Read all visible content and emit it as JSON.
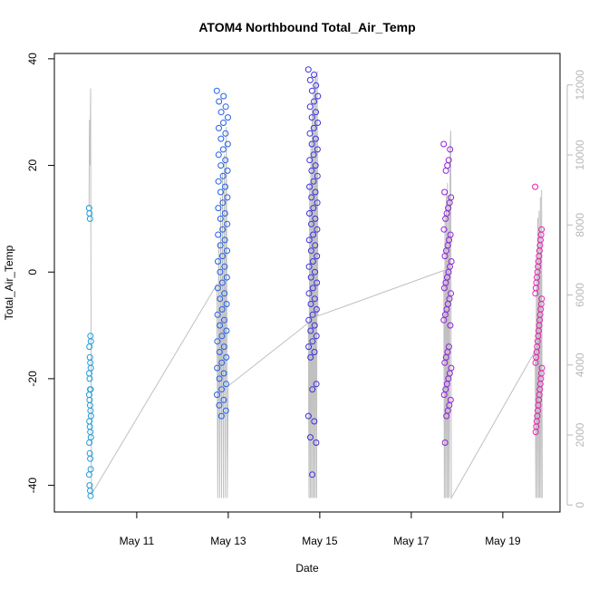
{
  "chart_data": {
    "type": "scatter",
    "title": "ATOM4 Northbound Total_Air_Temp",
    "xlabel": "Date",
    "ylabel": "Total_Air_Temp",
    "x_ticks": [
      "May 11",
      "May 13",
      "May 15",
      "May 17",
      "May 19"
    ],
    "y_ticks": [
      -40,
      -20,
      0,
      20,
      40
    ],
    "y2_ticks": [
      0,
      2000,
      4000,
      6000,
      8000,
      10000,
      12000
    ],
    "xlim": [
      "2016-05-09 04:48",
      "2016-05-20 06:00"
    ],
    "ylim": [
      -45,
      41
    ],
    "y2lim": [
      -200,
      12900
    ],
    "secondary_series": {
      "name": "",
      "color": "#c0c0c0",
      "description_axis": "right",
      "points": [
        [
          "2016-05-09 23:00",
          8500
        ],
        [
          "2016-05-09 23:12",
          11000
        ],
        [
          "2016-05-09 23:30",
          9700
        ],
        [
          "2016-05-09 23:48",
          11900
        ],
        [
          "2016-05-10 00:12",
          300
        ],
        [
          "2016-05-12 18:00",
          6300
        ],
        [
          "2016-05-12 18:30",
          200
        ],
        [
          "2016-05-12 19:00",
          7500
        ],
        [
          "2016-05-12 19:30",
          200
        ],
        [
          "2016-05-12 20:00",
          8800
        ],
        [
          "2016-05-12 20:30",
          200
        ],
        [
          "2016-05-12 21:00",
          9500
        ],
        [
          "2016-05-12 21:30",
          200
        ],
        [
          "2016-05-12 22:00",
          10000
        ],
        [
          "2016-05-12 22:30",
          200
        ],
        [
          "2016-05-12 23:00",
          10800
        ],
        [
          "2016-05-12 23:30",
          200
        ],
        [
          "2016-05-13 00:00",
          3400
        ],
        [
          "2016-05-14 18:00",
          5200
        ],
        [
          "2016-05-14 18:20",
          200
        ],
        [
          "2016-05-14 18:40",
          9200
        ],
        [
          "2016-05-14 19:00",
          200
        ],
        [
          "2016-05-14 19:20",
          10400
        ],
        [
          "2016-05-14 19:40",
          200
        ],
        [
          "2016-05-14 20:00",
          11300
        ],
        [
          "2016-05-14 20:20",
          200
        ],
        [
          "2016-05-14 20:40",
          11800
        ],
        [
          "2016-05-14 21:00",
          200
        ],
        [
          "2016-05-14 21:20",
          12300
        ],
        [
          "2016-05-14 21:40",
          200
        ],
        [
          "2016-05-14 22:00",
          12200
        ],
        [
          "2016-05-14 22:20",
          200
        ],
        [
          "2016-05-14 22:40",
          12400
        ],
        [
          "2016-05-14 23:00",
          5400
        ],
        [
          "2016-05-17 17:00",
          6700
        ],
        [
          "2016-05-17 17:20",
          200
        ],
        [
          "2016-05-17 17:40",
          8300
        ],
        [
          "2016-05-17 18:00",
          200
        ],
        [
          "2016-05-17 18:20",
          8900
        ],
        [
          "2016-05-17 18:40",
          200
        ],
        [
          "2016-05-17 19:00",
          9200
        ],
        [
          "2016-05-17 19:20",
          200
        ],
        [
          "2016-05-17 19:40",
          8800
        ],
        [
          "2016-05-17 20:00",
          200
        ],
        [
          "2016-05-17 20:20",
          10200
        ],
        [
          "2016-05-17 20:40",
          10700
        ],
        [
          "2016-05-17 21:00",
          200
        ],
        [
          "2016-05-19 17:00",
          4400
        ],
        [
          "2016-05-19 17:20",
          200
        ],
        [
          "2016-05-19 17:40",
          7000
        ],
        [
          "2016-05-19 18:00",
          200
        ],
        [
          "2016-05-19 18:20",
          8200
        ],
        [
          "2016-05-19 18:40",
          200
        ],
        [
          "2016-05-19 19:00",
          8400
        ],
        [
          "2016-05-19 19:20",
          200
        ],
        [
          "2016-05-19 19:40",
          8800
        ],
        [
          "2016-05-19 20:00",
          200
        ],
        [
          "2016-05-19 20:20",
          9000
        ],
        [
          "2016-05-19 20:40",
          200
        ]
      ]
    },
    "clusters": [
      {
        "date_start": "2016-05-09 23:00",
        "date_end": "2016-05-10 00:00",
        "color": "#1e9bd8",
        "temps": [
          12,
          11,
          10,
          -12,
          -13,
          -14,
          -16,
          -17,
          -18,
          -19,
          -20,
          -22,
          -22,
          -23,
          -24,
          -25,
          -26,
          -27,
          -28,
          -29,
          -30,
          -31,
          -32,
          -34,
          -35,
          -37,
          -38,
          -40,
          -41,
          -42
        ]
      },
      {
        "date_start": "2016-05-12 18:00",
        "date_end": "2016-05-12 23:48",
        "color": "#1f5fe8",
        "temps": [
          34,
          33,
          32,
          31,
          30,
          29,
          28,
          27,
          26,
          25,
          24,
          23,
          22,
          21,
          20,
          19,
          18,
          17,
          16,
          15,
          14,
          13,
          12,
          11,
          10,
          9,
          8,
          7,
          6,
          5,
          4,
          3,
          2,
          1,
          0,
          -1,
          -2,
          -3,
          -4,
          -5,
          -6,
          -7,
          -8,
          -9,
          -10,
          -11,
          -12,
          -13,
          -14,
          -15,
          -16,
          -17,
          -18,
          -19,
          -20,
          -21,
          -22,
          -23,
          -24,
          -25,
          -26,
          -27
        ]
      },
      {
        "date_start": "2016-05-14 18:00",
        "date_end": "2016-05-14 23:00",
        "color": "#3a2fe0",
        "temps": [
          38,
          37,
          36,
          35,
          34,
          33,
          32,
          31,
          30,
          29,
          28,
          27,
          26,
          25,
          24,
          23,
          22,
          21,
          20,
          19,
          18,
          17,
          16,
          15,
          14,
          13,
          12,
          11,
          10,
          9,
          8,
          7,
          6,
          5,
          4,
          3,
          2,
          1,
          0,
          -1,
          -2,
          -3,
          -4,
          -5,
          -6,
          -7,
          -8,
          -9,
          -10,
          -11,
          -12,
          -13,
          -14,
          -15,
          -16,
          -21,
          -22,
          -27,
          -28,
          -31,
          -32,
          -38
        ]
      },
      {
        "date_start": "2016-05-17 17:00",
        "date_end": "2016-05-17 21:00",
        "color": "#9020e0",
        "temps": [
          24,
          23,
          21,
          20,
          19,
          15,
          14,
          13,
          12,
          11,
          10,
          8,
          7,
          6,
          5,
          4,
          3,
          2,
          1,
          0,
          -1,
          -2,
          -3,
          -4,
          -5,
          -6,
          -7,
          -8,
          -9,
          -10,
          -14,
          -15,
          -16,
          -17,
          -18,
          -19,
          -20,
          -21,
          -22,
          -23,
          -24,
          -25,
          -26,
          -27,
          -32
        ]
      },
      {
        "date_start": "2016-05-19 17:00",
        "date_end": "2016-05-19 20:30",
        "color": "#e020b0",
        "temps": [
          16,
          8,
          7,
          6,
          5,
          4,
          3,
          2,
          1,
          0,
          -1,
          -2,
          -3,
          -4,
          -5,
          -6,
          -7,
          -8,
          -9,
          -10,
          -11,
          -12,
          -13,
          -14,
          -15,
          -16,
          -17,
          -18,
          -19,
          -20,
          -21,
          -22,
          -23,
          -24,
          -25,
          -26,
          -27,
          -28,
          -29,
          -30
        ]
      }
    ]
  }
}
